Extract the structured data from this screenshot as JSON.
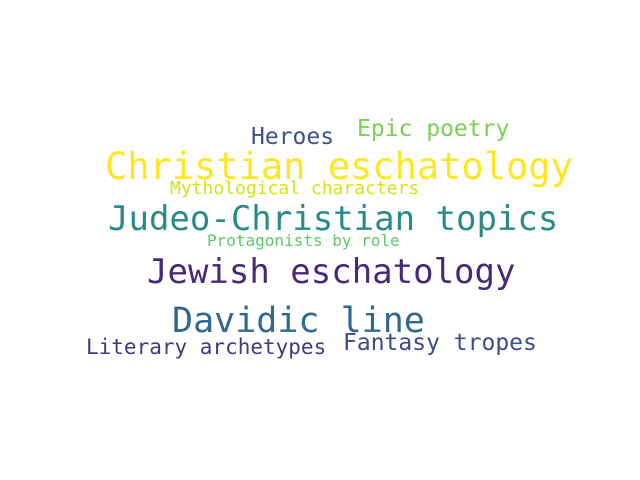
{
  "words": [
    {
      "text": "Heroes",
      "weight": 0.55,
      "color": "#3b528b"
    },
    {
      "text": "Epic poetry",
      "weight": 0.55,
      "color": "#7ad151"
    },
    {
      "text": "Christian eschatology",
      "weight": 1.0,
      "color": "#fde725"
    },
    {
      "text": "Mythological characters",
      "weight": 0.45,
      "color": "#d2e21b"
    },
    {
      "text": "Judeo-Christian topics",
      "weight": 0.9,
      "color": "#2a8a8a"
    },
    {
      "text": "Protagonists by role",
      "weight": 0.4,
      "color": "#5ec962"
    },
    {
      "text": "Jewish eschatology",
      "weight": 0.88,
      "color": "#482878"
    },
    {
      "text": "Davidic line",
      "weight": 0.88,
      "color": "#31688e"
    },
    {
      "text": "Literary archetypes",
      "weight": 0.52,
      "color": "#443983"
    },
    {
      "text": "Fantasy tropes",
      "weight": 0.55,
      "color": "#3e4a89"
    }
  ]
}
